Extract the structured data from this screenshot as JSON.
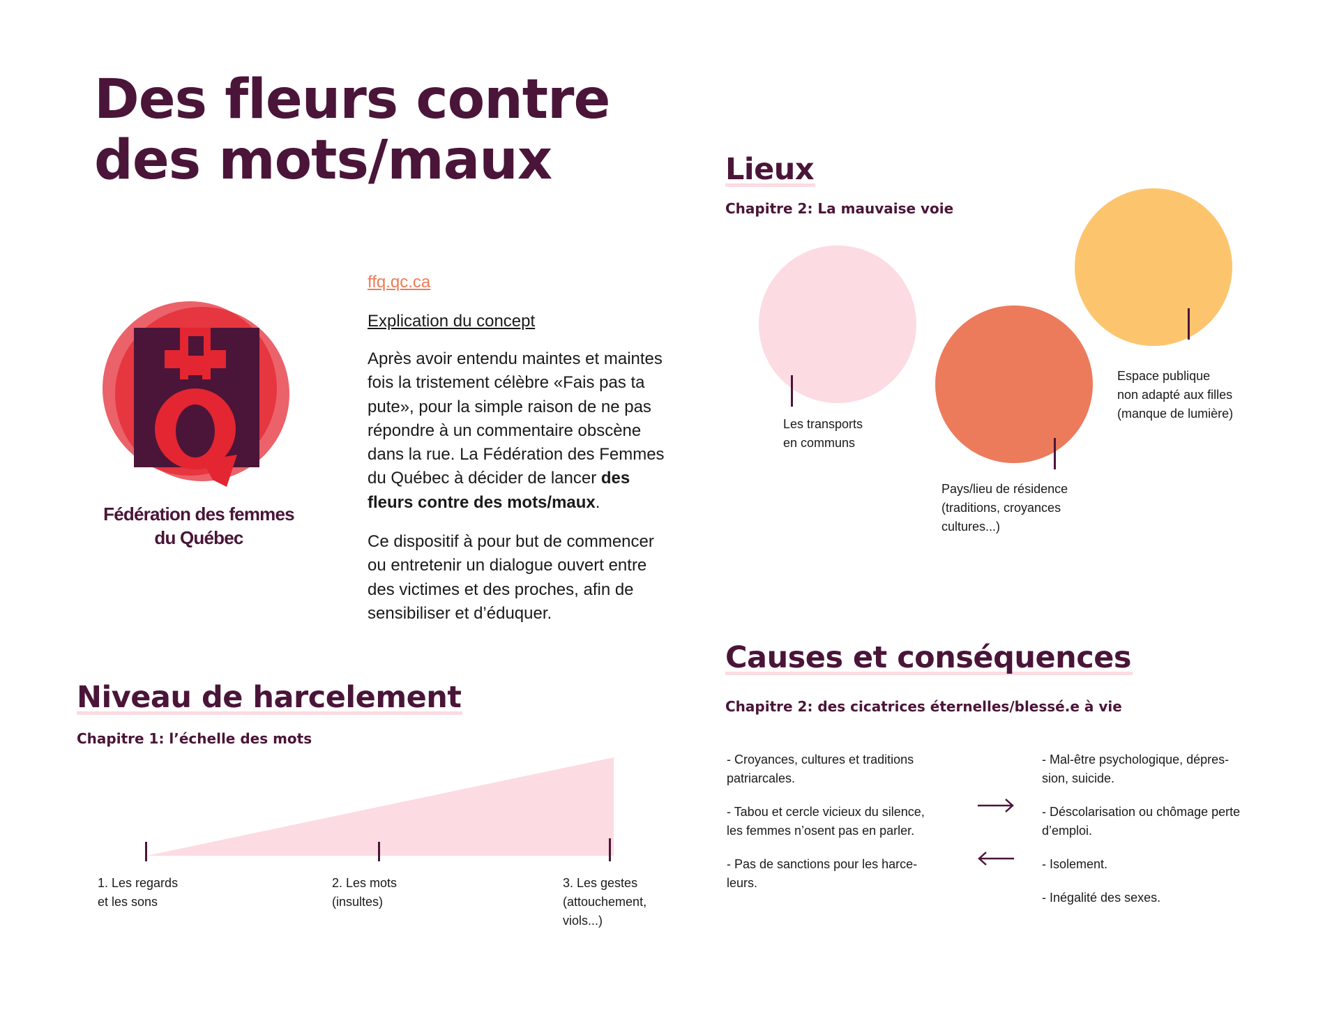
{
  "colors": {
    "plum": "#4a1538",
    "pink": "#fcdbe2",
    "coral": "#ec7b5c",
    "orange": "#fcc56d",
    "red": "#e32631",
    "link": "#ee7b56"
  },
  "title": {
    "line1": "Des fleurs contre",
    "line2": "des mots/maux"
  },
  "logo": {
    "icon": "federation-logo-q-icon",
    "name_line1": "Fédération des femmes",
    "name_line2": "du Québec"
  },
  "intro": {
    "link": "ffq.qc.ca",
    "heading": "Explication du concept",
    "p1_lines": [
      "Après avoir entendu maintes et maintes",
      "fois la tristement célèbre «Fais pas ta",
      "pute», pour la simple raison de ne pas",
      "répondre à un commentaire obscène",
      "dans la rue. La Fédération des Femmes"
    ],
    "p1_last_plain": "du Québec à décider de lancer ",
    "p1_bold_1": "des",
    "p1_bold_2": "fleurs contre des mots/maux",
    "p1_end": ".",
    "p2_lines": [
      "Ce dispositif à pour but de commencer",
      "ou entretenir un dialogue ouvert entre",
      "des victimes et des proches, afin de",
      "sensibiliser et d’éduquer."
    ]
  },
  "lieux": {
    "title": "Lieux",
    "subtitle": "Chapitre 2: La mauvaise voie",
    "circles": [
      {
        "color": "#fcdbe2",
        "label_lines": [
          "Les transports",
          "en communs"
        ]
      },
      {
        "color": "#ec7b5c",
        "label_lines": [
          "Pays/lieu de résidence",
          "(traditions, croyances",
          "cultures...)"
        ]
      },
      {
        "color": "#fcc56d",
        "label_lines": [
          "Espace publique",
          "non adapté aux filles",
          "(manque de lumière)"
        ]
      }
    ]
  },
  "niveau": {
    "title": "Niveau de harcelement",
    "subtitle": "Chapitre 1: l’échelle des mots",
    "steps": [
      {
        "lines": [
          "1. Les regards",
          "et les sons"
        ]
      },
      {
        "lines": [
          "2. Les mots",
          "(insultes)"
        ]
      },
      {
        "lines": [
          "3. Les gestes",
          "(attouchement,",
          "viols...)"
        ]
      }
    ]
  },
  "causes": {
    "title": "Causes et conséquences",
    "subtitle": "Chapitre 2: des cicatrices éternelles/blessé.e à vie",
    "left": [
      [
        "- Croyances, cultures et traditions",
        "patriarcales."
      ],
      [
        "- Tabou et cercle vicieux du silence,",
        "les femmes n’osent pas en parler."
      ],
      [
        "- Pas de sanctions pour les harce-",
        "leurs."
      ]
    ],
    "right": [
      [
        "- Mal-être psychologique, dépres-",
        "sion, suicide."
      ],
      [
        "- Déscolarisation ou chômage perte",
        "d’emploi."
      ],
      [
        "- Isolement."
      ],
      [
        "- Inégalité des sexes."
      ]
    ],
    "arrow_right": "right-arrow-icon",
    "arrow_left": "left-arrow-icon"
  }
}
